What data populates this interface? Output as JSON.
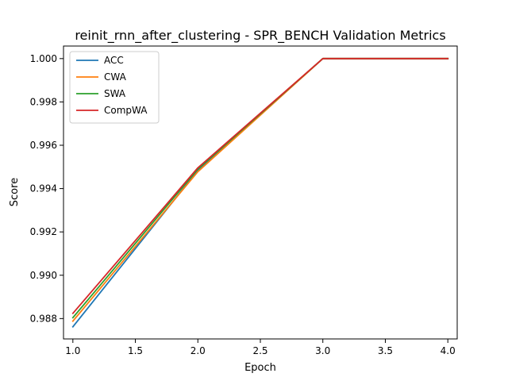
{
  "chart_data": {
    "type": "line",
    "title": "reinit_rnn_after_clustering - SPR_BENCH Validation Metrics",
    "xlabel": "Epoch",
    "ylabel": "Score",
    "xlim": [
      0.925,
      4.075
    ],
    "ylim": [
      0.98706,
      1.00058
    ],
    "xticks": [
      "1.0",
      "1.5",
      "2.0",
      "2.5",
      "3.0",
      "3.5",
      "4.0"
    ],
    "yticks": [
      "0.988",
      "0.990",
      "0.992",
      "0.994",
      "0.996",
      "0.998",
      "1.000"
    ],
    "grid": false,
    "legend_position": "top-left",
    "x": [
      1,
      2,
      3,
      4
    ],
    "series": [
      {
        "name": "ACC",
        "color": "#1f77b4",
        "values": [
          0.98762,
          0.99484,
          1.0,
          1.0
        ]
      },
      {
        "name": "CWA",
        "color": "#ff7f0e",
        "values": [
          0.98788,
          0.99478,
          1.0,
          1.0
        ]
      },
      {
        "name": "SWA",
        "color": "#2ca02c",
        "values": [
          0.98804,
          0.9949,
          1.0,
          1.0
        ]
      },
      {
        "name": "CompWA",
        "color": "#d62728",
        "values": [
          0.98824,
          0.99496,
          1.0,
          1.0
        ]
      }
    ]
  }
}
